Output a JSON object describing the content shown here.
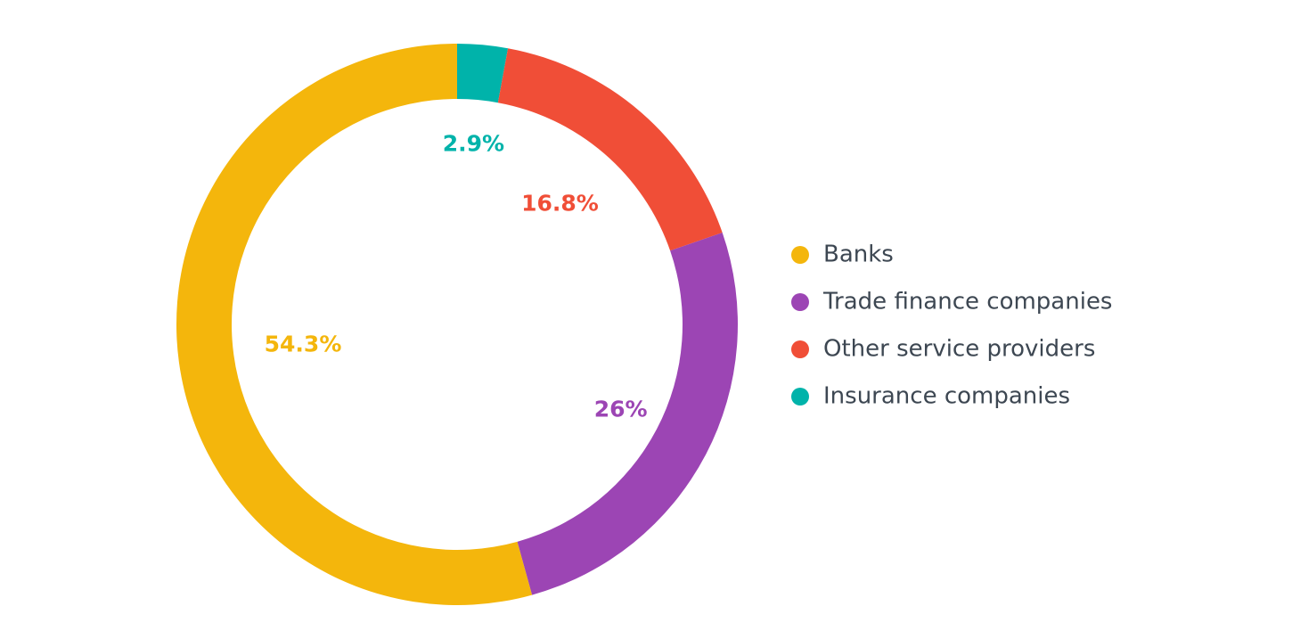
{
  "chart_data": {
    "type": "pie",
    "variant": "donut",
    "title": "",
    "categories": [
      "Banks",
      "Trade finance companies",
      "Other service providers",
      "Insurance companies"
    ],
    "values": [
      54.3,
      26,
      16.8,
      2.9
    ],
    "labels": [
      "54.3%",
      "26%",
      "16.8%",
      "2.9%"
    ],
    "colors": [
      "#f4b60c",
      "#9c45b4",
      "#f04e37",
      "#00b3aa"
    ],
    "legend": {
      "position": "right",
      "items": [
        "Banks",
        "Trade finance companies",
        "Other service providers",
        "Insurance companies"
      ]
    },
    "slice_order": "clockwise from top: Insurance companies, Other service providers, Trade finance companies, Banks"
  }
}
